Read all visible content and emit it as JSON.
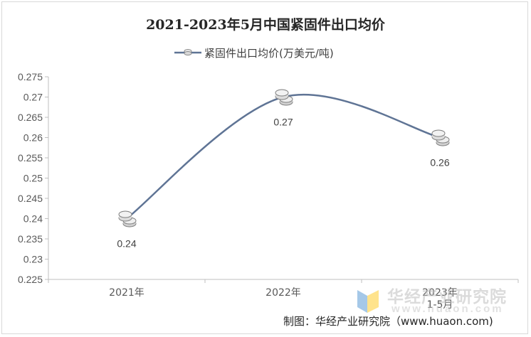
{
  "chart_data": {
    "type": "line",
    "title": "2021-2023年5月中国紧固件出口均价",
    "categories": [
      "2021年",
      "2022年",
      "2023年\n1-5月"
    ],
    "series": [
      {
        "name": "紧固件出口均价(万美元/吨)",
        "values": [
          0.24,
          0.27,
          0.26
        ],
        "color": "#5f7495"
      }
    ],
    "data_labels": [
      "0.24",
      "0.27",
      "0.26"
    ],
    "ylim": [
      0.225,
      0.275
    ],
    "yticks": [
      "0.225",
      "0.23",
      "0.235",
      "0.24",
      "0.245",
      "0.25",
      "0.255",
      "0.26",
      "0.265",
      "0.27",
      "0.275"
    ],
    "grid": false,
    "legend_position": "top-center",
    "smooth": true
  },
  "watermark": {
    "name": "华经产业研究院",
    "url": "www.huaon.com"
  },
  "credit": "制图：华经产业研究院（www.huaon.com)"
}
